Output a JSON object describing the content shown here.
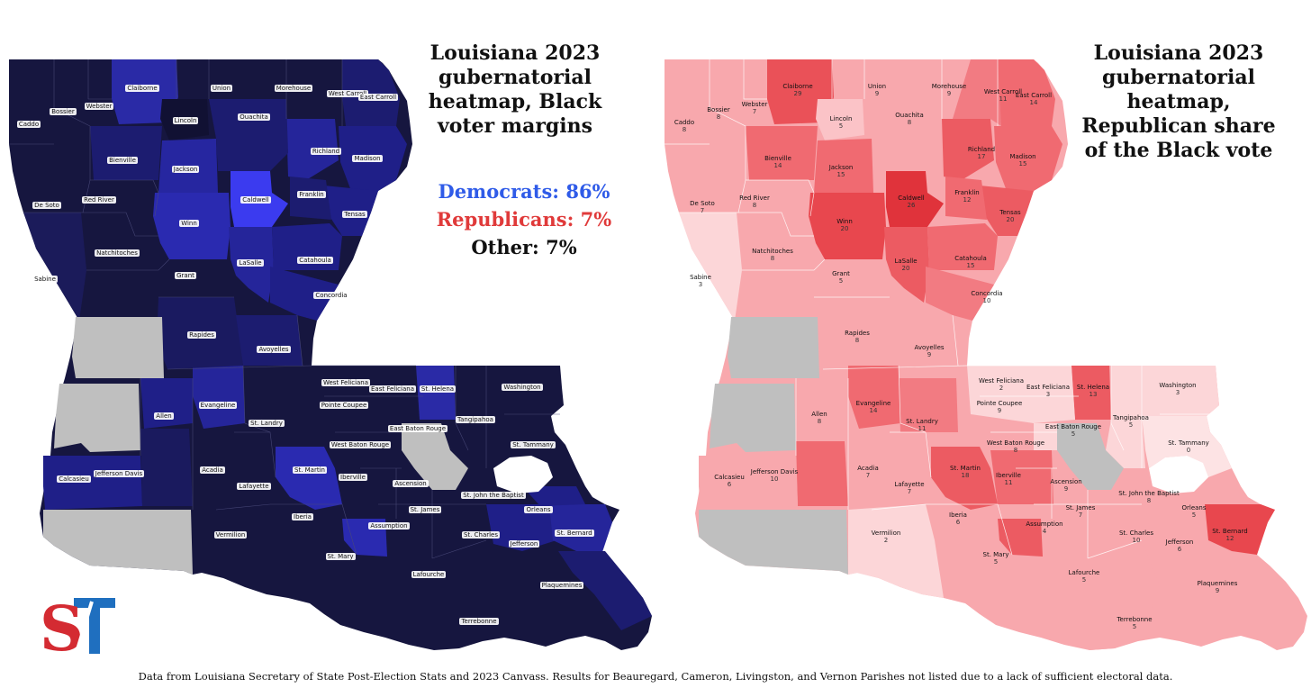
{
  "left_map": {
    "title": "Louisiana 2023 gubernatorial heatmap, Black voter margins",
    "title_lines": [
      "Louisiana 2023",
      "gubernatorial",
      "heatmap, Black",
      "voter margins"
    ],
    "legend": {
      "democrats": "Democrats: 86%",
      "republicans": "Republicans: 7%",
      "other": "Other: 7%"
    },
    "colors": {
      "dark": "#111133",
      "mid": "#1e1e7a",
      "bright": "#2a2ad0",
      "brightest": "#3b3bef",
      "nodata": "#bfbfbf",
      "democrats_text": "#2f5be8",
      "republicans_text": "#e03a3a"
    }
  },
  "right_map": {
    "title": "Louisiana 2023 gubernatorial heatmap, Republican share of the Black vote",
    "title_lines": [
      "Louisiana 2023",
      "gubernatorial",
      "heatmap,",
      "Republican share",
      "of the Black vote"
    ],
    "colors": {
      "lightest": "#fcd6d8",
      "light": "#f8a8ad",
      "mid": "#f27b82",
      "strong": "#ea5158",
      "strongest": "#e0333b",
      "nodata": "#bfbfbf"
    }
  },
  "parishes": [
    {
      "name": "Caddo",
      "value": "8"
    },
    {
      "name": "Bossier",
      "value": "8"
    },
    {
      "name": "Webster",
      "value": "7"
    },
    {
      "name": "Claiborne",
      "value": "29"
    },
    {
      "name": "Union",
      "value": "9"
    },
    {
      "name": "Morehouse",
      "value": "9"
    },
    {
      "name": "West Carroll",
      "value": "11"
    },
    {
      "name": "East Carroll",
      "value": "14"
    },
    {
      "name": "Lincoln",
      "value": "5"
    },
    {
      "name": "Ouachita",
      "value": "8"
    },
    {
      "name": "Richland",
      "value": "17"
    },
    {
      "name": "Bienville",
      "value": "14"
    },
    {
      "name": "Jackson",
      "value": "15"
    },
    {
      "name": "Madison",
      "value": "15"
    },
    {
      "name": "De Soto",
      "value": "7"
    },
    {
      "name": "Red River",
      "value": "8"
    },
    {
      "name": "Caldwell",
      "value": "26"
    },
    {
      "name": "Franklin",
      "value": "12"
    },
    {
      "name": "Tensas",
      "value": "20"
    },
    {
      "name": "Winn",
      "value": "20"
    },
    {
      "name": "Natchitoches",
      "value": "8"
    },
    {
      "name": "LaSalle",
      "value": "20"
    },
    {
      "name": "Catahoula",
      "value": "15"
    },
    {
      "name": "Grant",
      "value": "5"
    },
    {
      "name": "Sabine",
      "value": "3"
    },
    {
      "name": "Concordia",
      "value": "10"
    },
    {
      "name": "Rapides",
      "value": "8"
    },
    {
      "name": "Avoyelles",
      "value": "9"
    },
    {
      "name": "West Feliciana",
      "value": "2"
    },
    {
      "name": "East Feliciana",
      "value": "3"
    },
    {
      "name": "St. Helena",
      "value": "13"
    },
    {
      "name": "Washington",
      "value": "3"
    },
    {
      "name": "Evangeline",
      "value": "14"
    },
    {
      "name": "Allen",
      "value": "8"
    },
    {
      "name": "Pointe Coupee",
      "value": "9"
    },
    {
      "name": "St. Landry",
      "value": "11"
    },
    {
      "name": "Tangipahoa",
      "value": "5"
    },
    {
      "name": "East Baton Rouge",
      "value": "5"
    },
    {
      "name": "West Baton Rouge",
      "value": "8"
    },
    {
      "name": "St. Tammany",
      "value": "0"
    },
    {
      "name": "Calcasieu",
      "value": "6"
    },
    {
      "name": "Jefferson Davis",
      "value": "10"
    },
    {
      "name": "Acadia",
      "value": "7"
    },
    {
      "name": "Lafayette",
      "value": "7"
    },
    {
      "name": "St. Martin",
      "value": "18"
    },
    {
      "name": "Iberville",
      "value": "11"
    },
    {
      "name": "Ascension",
      "value": "9"
    },
    {
      "name": "St. John the Baptist",
      "value": "8"
    },
    {
      "name": "Orleans",
      "value": "5"
    },
    {
      "name": "Iberia",
      "value": "6"
    },
    {
      "name": "St. James",
      "value": "7"
    },
    {
      "name": "Vermilion",
      "value": "2"
    },
    {
      "name": "Assumption",
      "value": "4"
    },
    {
      "name": "St. Charles",
      "value": "10"
    },
    {
      "name": "St. Bernard",
      "value": "12"
    },
    {
      "name": "Jefferson",
      "value": "6"
    },
    {
      "name": "St. Mary",
      "value": "5"
    },
    {
      "name": "Lafourche",
      "value": "5"
    },
    {
      "name": "Terrebonne",
      "value": "5"
    },
    {
      "name": "Plaquemines",
      "value": "9"
    }
  ],
  "logo": {
    "text_s": "S",
    "text_t": "T",
    "color_s": "#d42b32",
    "color_t": "#1f6fbf"
  },
  "footer": "Data from Louisiana Secretary of State Post-Election Stats and 2023 Canvass. Results for Beauregard, Cameron, Livingston, and Vernon Parishes not listed due to a lack of sufficient electoral data."
}
